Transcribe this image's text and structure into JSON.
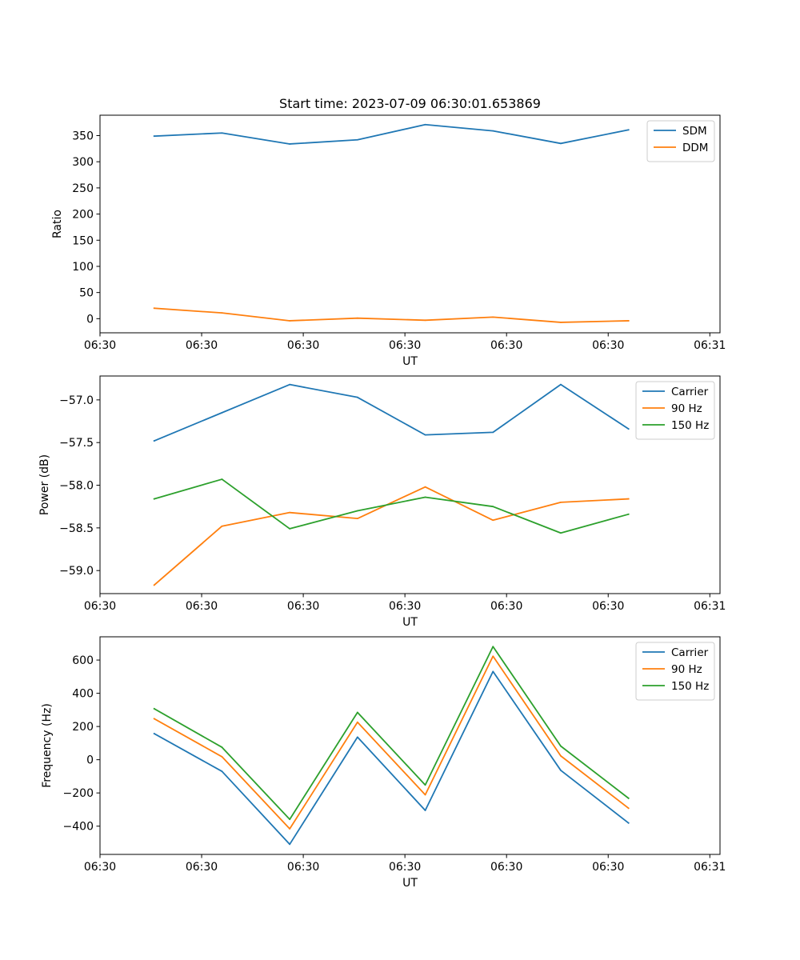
{
  "figure_title": "Start time: 2023-07-09 06:30:01.653869",
  "colors": {
    "blue": "#1f77b4",
    "orange": "#ff7f0e",
    "green": "#2ca02c"
  },
  "chart_data": [
    {
      "type": "line",
      "title": "Start time: 2023-07-09 06:30:01.653869",
      "xlabel": "UT",
      "ylabel": "Ratio",
      "x": [
        1,
        2,
        3,
        4,
        5,
        6,
        7,
        8
      ],
      "xlim": [
        0.2,
        9.35
      ],
      "ylim": [
        -27,
        389
      ],
      "xticks": [
        0.2,
        1.7,
        3.2,
        4.7,
        6.2,
        7.7,
        9.2
      ],
      "xtick_labels": [
        "06:30",
        "06:30",
        "06:30",
        "06:30",
        "06:30",
        "06:30",
        "06:31"
      ],
      "yticks": [
        0,
        50,
        100,
        150,
        200,
        250,
        300,
        350
      ],
      "ytick_labels": [
        "0",
        "50",
        "100",
        "150",
        "200",
        "250",
        "300",
        "350"
      ],
      "legend_position": "top-right",
      "series": [
        {
          "name": "SDM",
          "color": "blue",
          "values": [
            349,
            355,
            334,
            342,
            371,
            359,
            335,
            361
          ]
        },
        {
          "name": "DDM",
          "color": "orange",
          "values": [
            20,
            11,
            -4,
            1,
            -3,
            3,
            -7,
            -4
          ]
        }
      ]
    },
    {
      "type": "line",
      "title": "",
      "xlabel": "UT",
      "ylabel": "Power (dB)",
      "x": [
        1,
        2,
        3,
        4,
        5,
        6,
        7,
        8
      ],
      "xlim": [
        0.2,
        9.35
      ],
      "ylim": [
        -59.27,
        -56.72
      ],
      "xticks": [
        0.2,
        1.7,
        3.2,
        4.7,
        6.2,
        7.7,
        9.2
      ],
      "xtick_labels": [
        "06:30",
        "06:30",
        "06:30",
        "06:30",
        "06:30",
        "06:30",
        "06:31"
      ],
      "yticks": [
        -59.0,
        -58.5,
        -58.0,
        -57.5,
        -57.0
      ],
      "ytick_labels": [
        "−59.0",
        "−58.5",
        "−58.0",
        "−57.5",
        "−57.0"
      ],
      "legend_position": "top-right",
      "series": [
        {
          "name": "Carrier",
          "color": "blue",
          "values": [
            -57.48,
            -57.15,
            -56.82,
            -56.97,
            -57.41,
            -57.38,
            -56.82,
            -57.34
          ]
        },
        {
          "name": "90 Hz",
          "color": "orange",
          "values": [
            -59.17,
            -58.48,
            -58.32,
            -58.39,
            -58.02,
            -58.41,
            -58.2,
            -58.16
          ]
        },
        {
          "name": "150 Hz",
          "color": "green",
          "values": [
            -58.16,
            -57.93,
            -58.51,
            -58.3,
            -58.14,
            -58.25,
            -58.56,
            -58.34
          ]
        }
      ]
    },
    {
      "type": "line",
      "title": "",
      "xlabel": "UT",
      "ylabel": "Frequency (Hz)",
      "x": [
        1,
        2,
        3,
        4,
        5,
        6,
        7,
        8
      ],
      "xlim": [
        0.2,
        9.35
      ],
      "ylim": [
        -570,
        740
      ],
      "xticks": [
        0.2,
        1.7,
        3.2,
        4.7,
        6.2,
        7.7,
        9.2
      ],
      "xtick_labels": [
        "06:30",
        "06:30",
        "06:30",
        "06:30",
        "06:30",
        "06:30",
        "06:31"
      ],
      "yticks": [
        -400,
        -200,
        0,
        200,
        400,
        600
      ],
      "ytick_labels": [
        "−400",
        "−200",
        "0",
        "200",
        "400",
        "600"
      ],
      "legend_position": "top-right",
      "series": [
        {
          "name": "Carrier",
          "color": "blue",
          "values": [
            157,
            -70,
            -509,
            136,
            -305,
            531,
            -64,
            -381
          ]
        },
        {
          "name": "90 Hz",
          "color": "orange",
          "values": [
            247,
            18,
            -416,
            226,
            -211,
            623,
            23,
            -292
          ]
        },
        {
          "name": "150 Hz",
          "color": "green",
          "values": [
            307,
            75,
            -359,
            285,
            -152,
            681,
            82,
            -232
          ]
        }
      ]
    }
  ]
}
